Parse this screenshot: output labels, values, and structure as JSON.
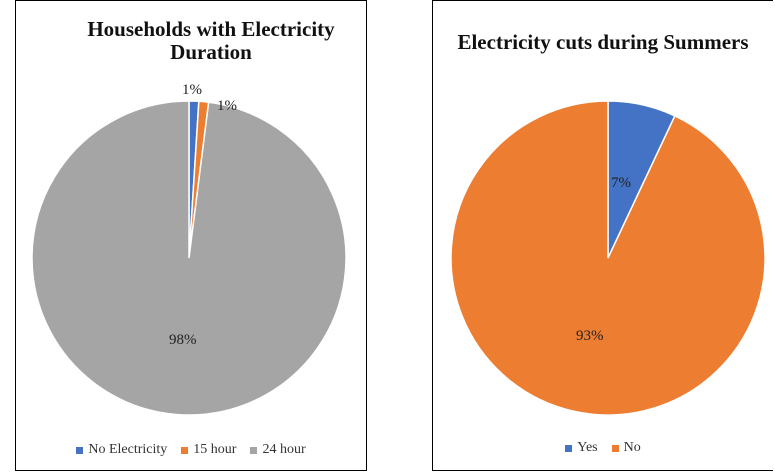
{
  "chart_data": [
    {
      "type": "pie",
      "title": "Households with Electricity Duration",
      "slices": [
        {
          "name": "No Electricity",
          "value": 1,
          "label": "1%",
          "color": "#4472c4"
        },
        {
          "name": "15 hour",
          "value": 1,
          "label": "1%",
          "color": "#ed7d31"
        },
        {
          "name": "24 hour",
          "value": 98,
          "label": "98%",
          "color": "#a5a5a5"
        }
      ],
      "legend": "bottom"
    },
    {
      "type": "pie",
      "title": "Electricity cuts during Summers",
      "slices": [
        {
          "name": "Yes",
          "value": 7,
          "label": "7%",
          "color": "#4472c4"
        },
        {
          "name": "No",
          "value": 93,
          "label": "93%",
          "color": "#ed7d31"
        }
      ],
      "legend": "bottom"
    }
  ]
}
